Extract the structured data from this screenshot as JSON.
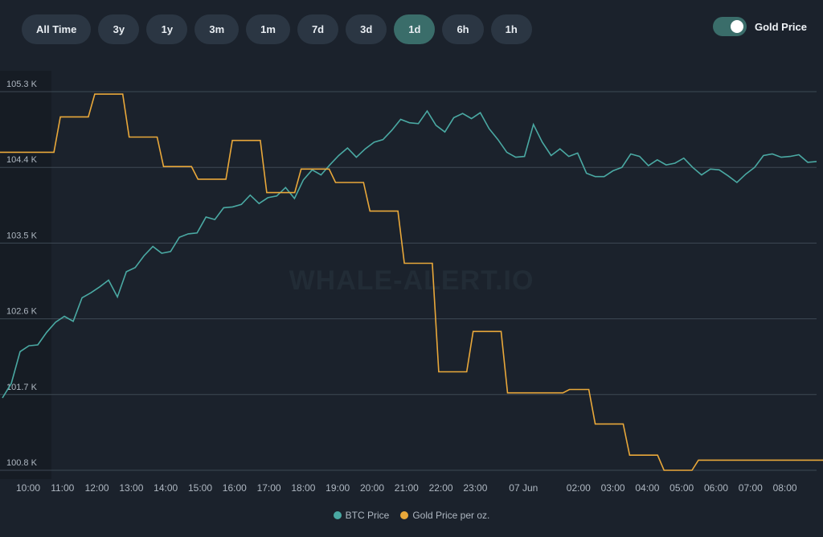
{
  "range_tabs": [
    {
      "label": "All Time"
    },
    {
      "label": "3y"
    },
    {
      "label": "1y"
    },
    {
      "label": "3m"
    },
    {
      "label": "1m"
    },
    {
      "label": "7d"
    },
    {
      "label": "3d"
    },
    {
      "label": "1d",
      "active": true
    },
    {
      "label": "6h"
    },
    {
      "label": "1h"
    }
  ],
  "gold_toggle": {
    "label": "Gold Price",
    "on": true
  },
  "watermark": "WHALE-ALERT.IO",
  "colors": {
    "btc": "#4aa9a3",
    "gold": "#e9a83a",
    "grid": "#3e4955",
    "axis_text": "#aeb7c1"
  },
  "chart_data": {
    "type": "line",
    "x_ticks": [
      "10:00",
      "11:00",
      "12:00",
      "13:00",
      "14:00",
      "15:00",
      "16:00",
      "17:00",
      "18:00",
      "19:00",
      "20:00",
      "21:00",
      "22:00",
      "23:00",
      "07 Jun",
      "02:00",
      "03:00",
      "04:00",
      "05:00",
      "06:00",
      "07:00",
      "08:00"
    ],
    "y_ticks": [
      "105.3 K",
      "104.4 K",
      "103.5 K",
      "102.6 K",
      "101.7 K",
      "100.8 K"
    ],
    "ylim": [
      100.8,
      105.3
    ],
    "legend": "bottom-center",
    "grid": true,
    "series": [
      {
        "name": "BTC Price",
        "color": "#4aa9a3",
        "values": [
          101.66,
          101.83,
          102.21,
          102.28,
          102.29,
          102.44,
          102.56,
          102.63,
          102.57,
          102.85,
          102.91,
          102.98,
          103.06,
          102.86,
          103.16,
          103.21,
          103.35,
          103.46,
          103.38,
          103.4,
          103.57,
          103.61,
          103.62,
          103.81,
          103.78,
          103.92,
          103.93,
          103.96,
          104.07,
          103.97,
          104.04,
          104.06,
          104.16,
          104.03,
          104.25,
          104.37,
          104.31,
          104.43,
          104.54,
          104.63,
          104.52,
          104.62,
          104.7,
          104.73,
          104.84,
          104.97,
          104.93,
          104.92,
          105.07,
          104.9,
          104.82,
          104.99,
          105.04,
          104.98,
          105.05,
          104.86,
          104.73,
          104.58,
          104.52,
          104.53,
          104.91,
          104.7,
          104.54,
          104.62,
          104.53,
          104.57,
          104.33,
          104.29,
          104.29,
          104.36,
          104.4,
          104.56,
          104.53,
          104.42,
          104.49,
          104.43,
          104.45,
          104.51,
          104.4,
          104.31,
          104.38,
          104.37,
          104.3,
          104.22,
          104.32,
          104.4,
          104.54,
          104.56,
          104.52,
          104.53,
          104.55,
          104.46,
          104.47
        ],
        "note_points_evenly_spaced": false
      },
      {
        "name": "Gold Price per oz.",
        "color": "#e9a83a",
        "steps": [
          [
            "10:00",
            104.58
          ],
          [
            "10:45",
            105.0
          ],
          [
            "11:45",
            105.27
          ],
          [
            "12:45",
            104.76
          ],
          [
            "13:45",
            104.41
          ],
          [
            "14:45",
            104.26
          ],
          [
            "15:45",
            104.72
          ],
          [
            "16:45",
            104.1
          ],
          [
            "17:45",
            104.38
          ],
          [
            "18:45",
            104.22
          ],
          [
            "19:45",
            103.88
          ],
          [
            "20:45",
            103.26
          ],
          [
            "21:45",
            101.97
          ],
          [
            "22:45",
            102.45
          ],
          [
            "23:45",
            101.72
          ],
          [
            "01:00",
            101.76
          ],
          [
            "01:45",
            101.35
          ],
          [
            "02:45",
            100.98
          ],
          [
            "03:45",
            100.8
          ],
          [
            "04:45",
            100.92
          ],
          [
            "08:45",
            100.92
          ]
        ]
      }
    ]
  },
  "legend_items": [
    {
      "label": "BTC Price",
      "color": "#4aa9a3"
    },
    {
      "label": "Gold Price per oz.",
      "color": "#e9a83a"
    }
  ]
}
